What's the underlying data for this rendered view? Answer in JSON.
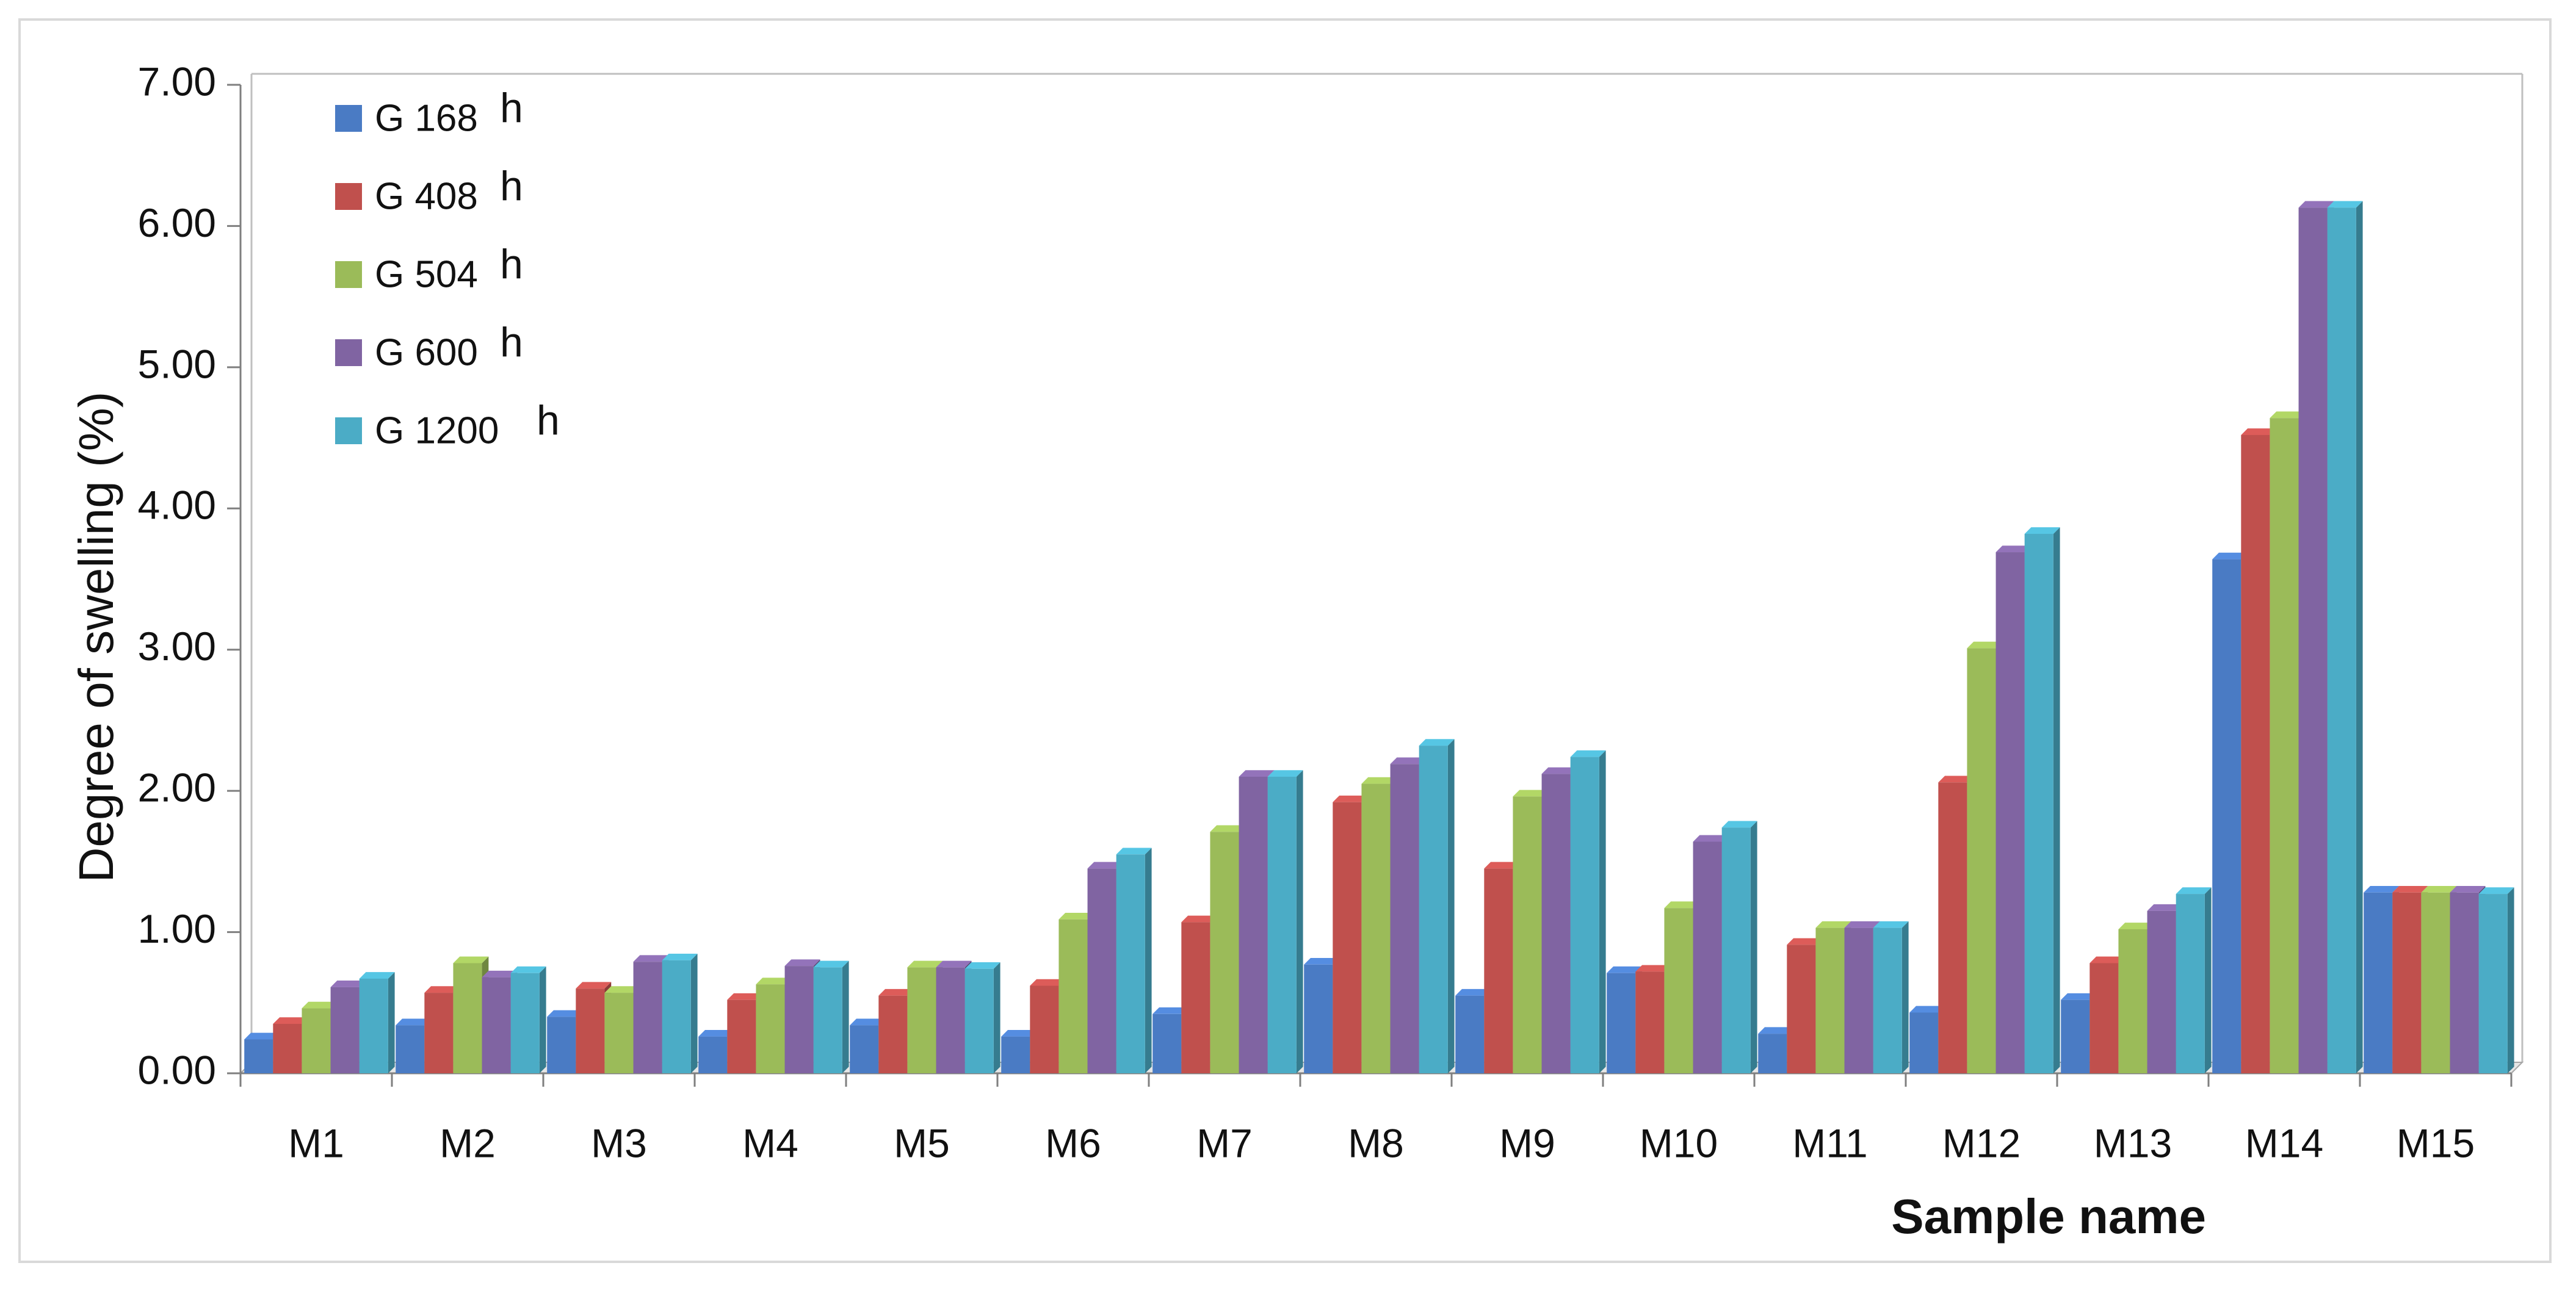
{
  "chart_data": {
    "type": "bar",
    "title": "",
    "xlabel": "Sample name",
    "ylabel": "Degree of swelling (%)",
    "ylim": [
      0,
      7
    ],
    "yticks": [
      "0.00",
      "1.00",
      "2.00",
      "3.00",
      "4.00",
      "5.00",
      "6.00",
      "7.00"
    ],
    "grid": false,
    "legend_position": "top-left",
    "categories": [
      "M1",
      "M2",
      "M3",
      "M4",
      "M5",
      "M6",
      "M7",
      "M8",
      "M9",
      "M10",
      "M11",
      "M12",
      "M13",
      "M14",
      "M15"
    ],
    "series": [
      {
        "name": "G 168",
        "unit": "h",
        "color": "#4a7bc4",
        "values": [
          0.24,
          0.34,
          0.4,
          0.26,
          0.34,
          0.26,
          0.42,
          0.77,
          0.55,
          0.71,
          0.28,
          0.43,
          0.52,
          3.64,
          1.28
        ]
      },
      {
        "name": "G 408",
        "unit": "h",
        "color": "#c0504d",
        "values": [
          0.35,
          0.57,
          0.6,
          0.52,
          0.55,
          0.62,
          1.07,
          1.92,
          1.45,
          0.72,
          0.91,
          2.06,
          0.78,
          4.52,
          1.28
        ]
      },
      {
        "name": "G 504",
        "unit": "h",
        "color": "#9bbb59",
        "values": [
          0.46,
          0.78,
          0.57,
          0.63,
          0.75,
          1.09,
          1.71,
          2.05,
          1.96,
          1.17,
          1.03,
          3.01,
          1.02,
          4.64,
          1.28
        ]
      },
      {
        "name": "G 600",
        "unit": "h",
        "color": "#8064a2",
        "values": [
          0.61,
          0.68,
          0.79,
          0.76,
          0.75,
          1.45,
          2.1,
          2.19,
          2.12,
          1.64,
          1.03,
          3.69,
          1.15,
          6.13,
          1.28
        ]
      },
      {
        "name": "G 1200",
        "unit": "h",
        "color": "#4bacc6",
        "values": [
          0.67,
          0.71,
          0.8,
          0.75,
          0.74,
          1.55,
          2.1,
          2.32,
          2.24,
          1.74,
          1.03,
          3.82,
          1.27,
          6.13,
          1.27
        ]
      }
    ]
  }
}
